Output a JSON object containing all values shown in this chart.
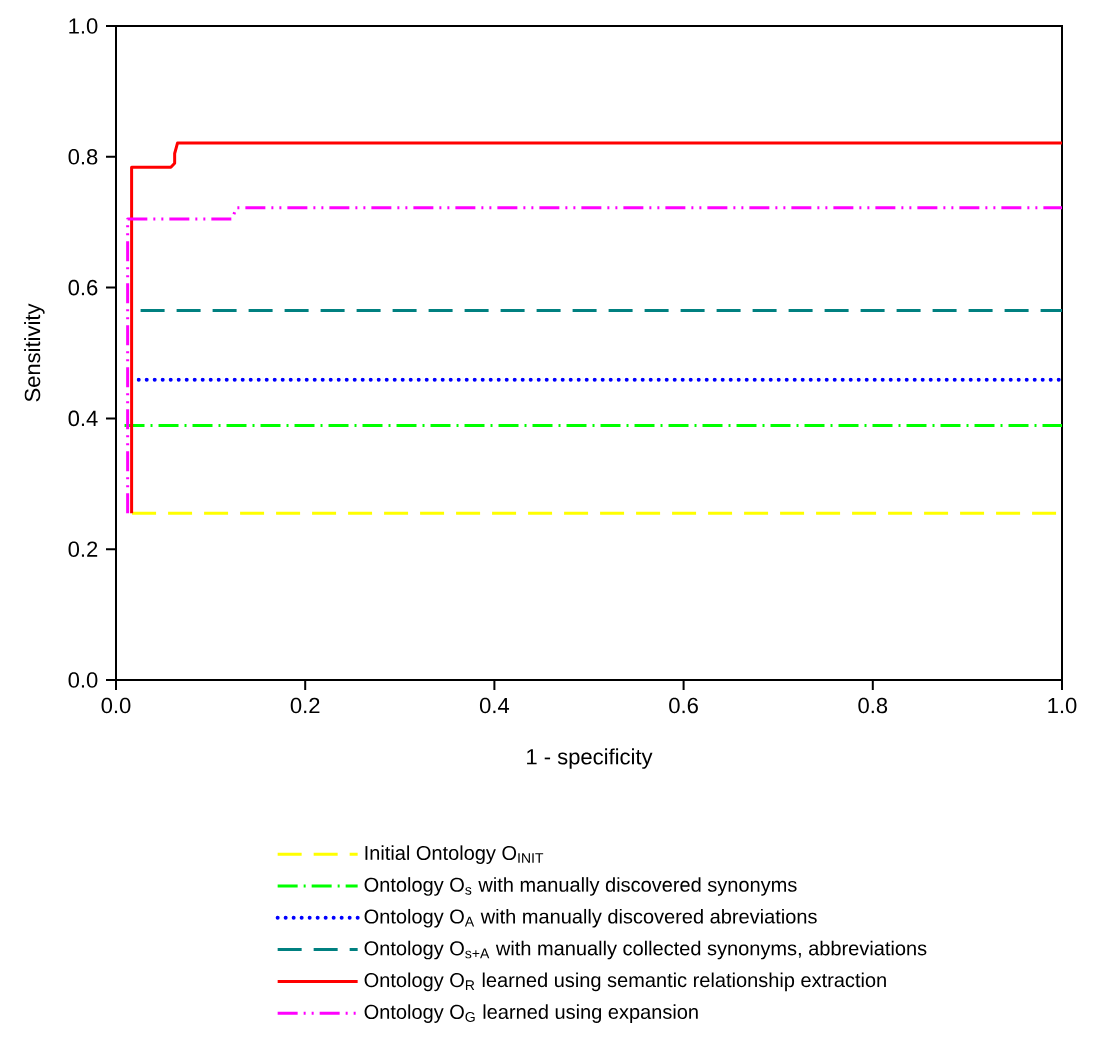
{
  "chart_data": {
    "type": "line",
    "xlabel": "1 - specificity",
    "ylabel": "Sensitivity",
    "xlim": [
      0,
      1
    ],
    "ylim": [
      0,
      1
    ],
    "xticks": [
      {
        "value": 0,
        "label": "0.0"
      },
      0.2,
      0.4,
      0.6,
      0.8,
      {
        "value": 1,
        "label": "1.0"
      }
    ],
    "yticks": [
      {
        "value": 0,
        "label": "0.0"
      },
      0.2,
      0.4,
      0.6,
      0.8,
      {
        "value": 1,
        "label": "1.0"
      }
    ],
    "grid": false,
    "legend": "bottom",
    "marker": "none",
    "series": [
      {
        "name": "Initial Ontology O$_{INIT}$",
        "color": "#ffff00",
        "line_style": "dashed",
        "x": [
          0.017,
          1
        ],
        "values": [
          0.255,
          0.255
        ]
      },
      {
        "name": "Ontology O$_{s}$ with manually discovered synonyms",
        "color": "#00ff00",
        "line_style": "dashdot",
        "x": [
          0.009,
          1
        ],
        "values": [
          0.389,
          0.389
        ]
      },
      {
        "name": "Ontology O$_{A}$ with manually discovered abreviations",
        "color": "#0000ff",
        "line_style": "dotted",
        "x": [
          0.024,
          1
        ],
        "values": [
          0.459,
          0.459
        ]
      },
      {
        "name": "Ontology O$_{s+A}$ with manually collected synonyms, abbreviations",
        "color": "#008080",
        "line_style": "dashed",
        "x": [
          0.026,
          1
        ],
        "values": [
          0.565,
          0.565
        ]
      },
      {
        "name": "Ontology O$_{R}$ learned using semantic relationship extraction",
        "color": "#ff0000",
        "line_style": "solid",
        "x": [
          0.0165,
          0.0165,
          0.058,
          0.062,
          0.062,
          0.065,
          1
        ],
        "values": [
          0.255,
          0.784,
          0.784,
          0.79,
          0.805,
          0.821,
          0.821
        ]
      },
      {
        "name": "Ontology O$_{G}$ learned using expansion",
        "color": "#ff00ff",
        "line_style": "dashdotdot",
        "x": [
          0.0123,
          0.0123,
          0.123,
          0.127,
          1
        ],
        "values": [
          0.255,
          0.705,
          0.705,
          0.722,
          0.722
        ]
      }
    ]
  }
}
